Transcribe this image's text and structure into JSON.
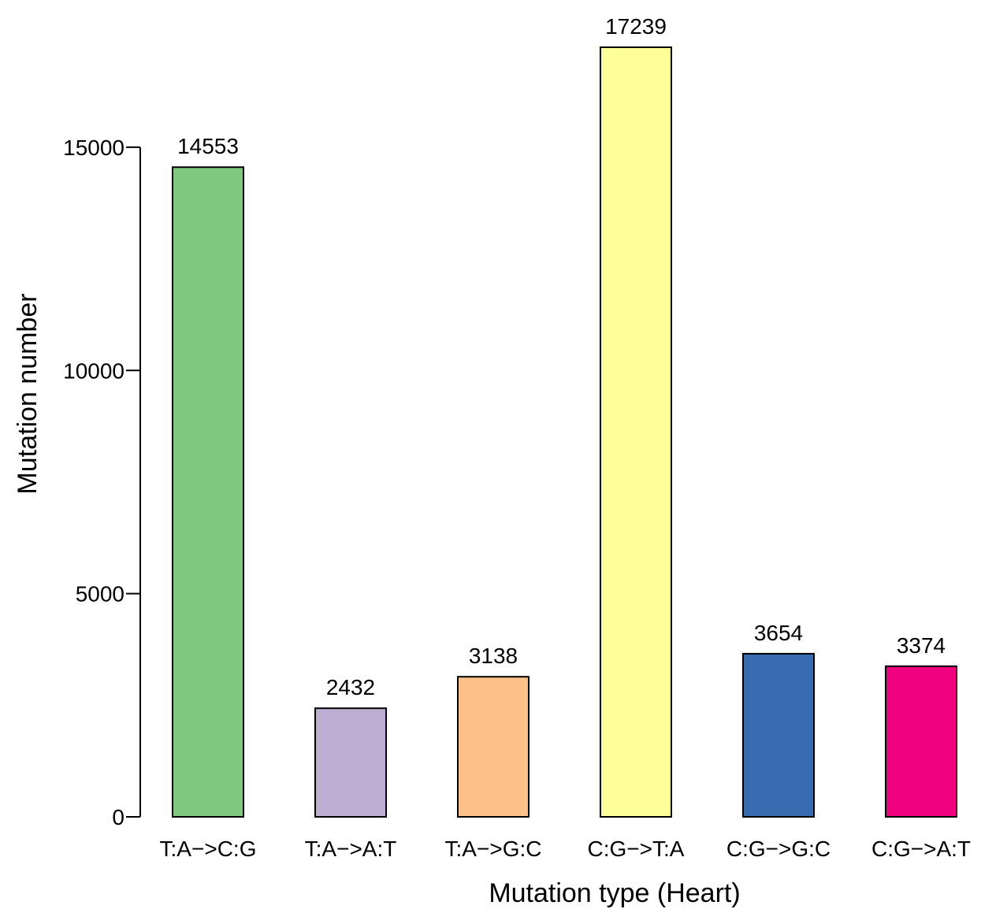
{
  "chart_data": {
    "type": "bar",
    "title": "",
    "xlabel": "Mutation type (Heart)",
    "ylabel": "Mutation number",
    "categories": [
      "T:A−>C:G",
      "T:A−>A:T",
      "T:A−>G:C",
      "C:G−>T:A",
      "C:G−>G:C",
      "C:G−>A:T"
    ],
    "values": [
      14553,
      2432,
      3138,
      17239,
      3654,
      3374
    ],
    "data_labels": [
      "14553",
      "2432",
      "3138",
      "17239",
      "3654",
      "3374"
    ],
    "colors": [
      "#7fc97f",
      "#beaed4",
      "#fdc086",
      "#ffff99",
      "#386cb0",
      "#f0027f"
    ],
    "ylim": [
      0,
      17239
    ],
    "yticks": [
      0,
      5000,
      10000,
      15000
    ],
    "ytick_labels": [
      "0",
      "5000",
      "10000",
      "15000"
    ],
    "grid": false,
    "legend": "none"
  }
}
